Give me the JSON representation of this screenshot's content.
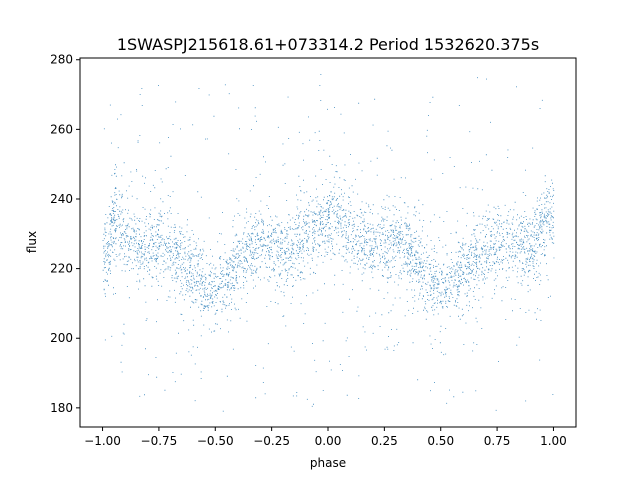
{
  "chart_data": {
    "type": "scatter",
    "title": "1SWASPJ215618.61+073314.2 Period 1532620.375s",
    "xlabel": "phase",
    "ylabel": "flux",
    "xlim": [
      -1.1,
      1.1
    ],
    "ylim": [
      174.5,
      280.5
    ],
    "xticks": [
      -1.0,
      -0.75,
      -0.5,
      -0.25,
      0.0,
      0.25,
      0.5,
      0.75,
      1.0
    ],
    "xtick_labels": [
      "−1.00",
      "−0.75",
      "−0.50",
      "−0.25",
      "0.00",
      "0.25",
      "0.50",
      "0.75",
      "1.00"
    ],
    "yticks": [
      180,
      200,
      220,
      240,
      260,
      280
    ],
    "ytick_labels": [
      "180",
      "200",
      "220",
      "240",
      "260",
      "280"
    ],
    "grid": false,
    "marker_color": "#1f77b4",
    "phase_range": [
      -1.0,
      1.0
    ],
    "flux_range": [
      179,
      276
    ],
    "series": [
      {
        "values_note_free": true,
        "x": [
          -0.98,
          -0.95,
          -0.9,
          -0.85,
          -0.8,
          -0.75,
          -0.7,
          -0.65,
          -0.6,
          -0.55,
          -0.5,
          -0.45,
          -0.4,
          -0.35,
          -0.3,
          -0.25,
          -0.2,
          -0.15,
          -0.1,
          -0.05,
          0.0,
          0.05,
          0.1,
          0.15,
          0.2,
          0.25,
          0.3,
          0.35,
          0.4,
          0.45,
          0.5,
          0.55,
          0.6,
          0.65,
          0.7,
          0.75,
          0.8,
          0.85,
          0.9,
          0.95,
          0.98
        ],
        "y": [
          224,
          236,
          229,
          227,
          226,
          227,
          226,
          222,
          219,
          215,
          213,
          216,
          222,
          226,
          228,
          226,
          225,
          227,
          229,
          232,
          232,
          236,
          230,
          227,
          226,
          228,
          229,
          226,
          222,
          216,
          214,
          216,
          220,
          223,
          225,
          227,
          228,
          227,
          226,
          232,
          236
        ]
      }
    ]
  }
}
